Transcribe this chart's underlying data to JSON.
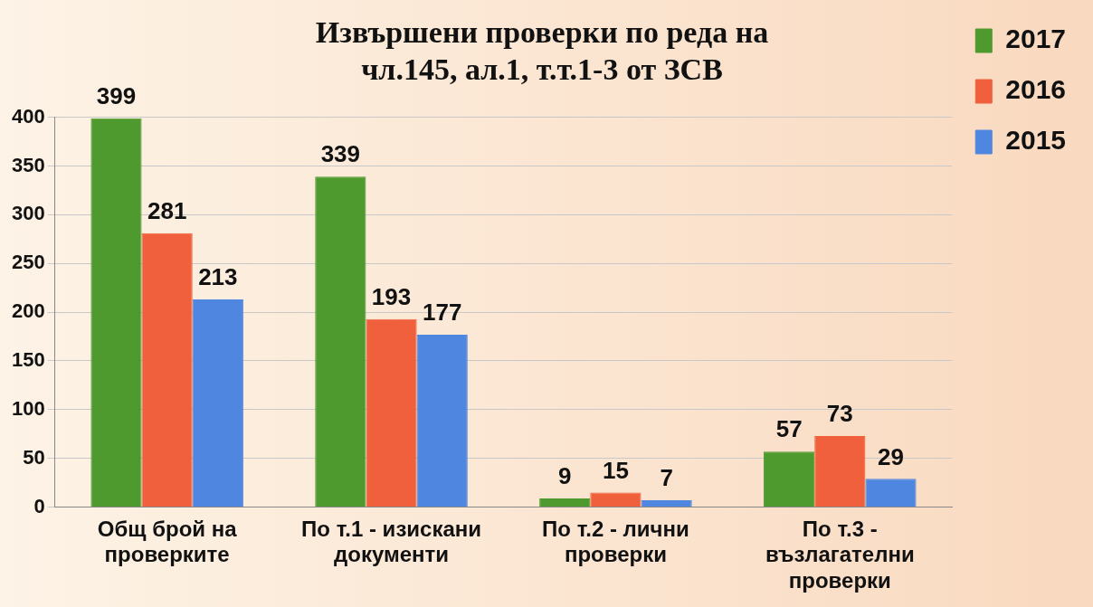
{
  "chart_data": {
    "type": "bar",
    "title": "Извършени проверки по реда на\nчл.145, ал.1, т.т.1-3 от ЗСВ",
    "categories": [
      "Общ брой на проверките",
      "По т.1 - изискани документи",
      "По т.2 - лични проверки",
      "По т.3 - възлагателни проверки"
    ],
    "series": [
      {
        "name": "2017",
        "color": "#4e9a2e",
        "values": [
          399,
          339,
          9,
          57
        ]
      },
      {
        "name": "2016",
        "color": "#f0603c",
        "values": [
          281,
          193,
          15,
          73
        ]
      },
      {
        "name": "2015",
        "color": "#4f86e0",
        "values": [
          213,
          177,
          7,
          29
        ]
      }
    ],
    "ylim": [
      0,
      400
    ],
    "yticks": [
      0,
      50,
      100,
      150,
      200,
      250,
      300,
      350,
      400
    ],
    "grid": "y",
    "legend": "top right",
    "data_labels": true
  }
}
